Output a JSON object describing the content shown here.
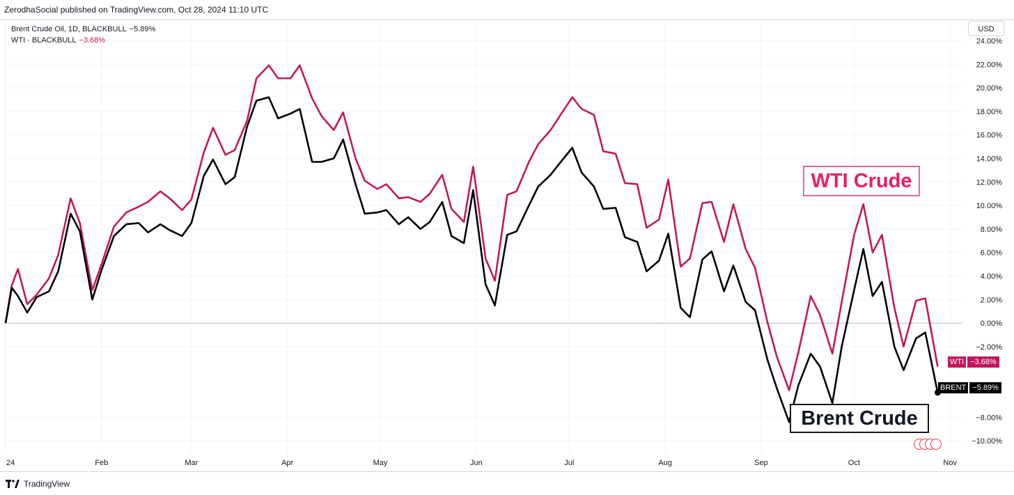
{
  "header": {
    "published_text": "ZerodhaSocial published on TradingView.com, Oct 28, 2024 11:10 UTC"
  },
  "legend": {
    "series1_label": "Brent Crude Oil, 1D, BLACKBULL",
    "series1_value": "−5.89%",
    "series2_label": "WTI · BLACKBULL",
    "series2_value": "−3.68%"
  },
  "currency_button": "USD",
  "annotations": {
    "wti": "WTI Crude",
    "brent": "Brent Crude"
  },
  "price_tags": {
    "wti": {
      "name": "WTI",
      "value": "−3.68%"
    },
    "brent": {
      "name": "BRENT",
      "value": "−5.89%"
    }
  },
  "footer": {
    "brand": "TradingView"
  },
  "colors": {
    "wti": "#c2185b",
    "brent": "#000000",
    "zero_line": "#b2b5be"
  },
  "chart_data": {
    "type": "line",
    "xlabel": "",
    "ylabel": "",
    "y_unit": "%",
    "ylim": [
      -11,
      24.5
    ],
    "x_range": [
      "2024-01-01",
      "2024-11-05"
    ],
    "grid": true,
    "x_ticks": [
      {
        "label": "24",
        "date": "2024-01-01"
      },
      {
        "label": "Feb",
        "date": "2024-02-01"
      },
      {
        "label": "Mar",
        "date": "2024-03-01"
      },
      {
        "label": "Apr",
        "date": "2024-04-01"
      },
      {
        "label": "May",
        "date": "2024-05-01"
      },
      {
        "label": "Jun",
        "date": "2024-06-01"
      },
      {
        "label": "Jul",
        "date": "2024-07-01"
      },
      {
        "label": "Aug",
        "date": "2024-08-01"
      },
      {
        "label": "Sep",
        "date": "2024-09-01"
      },
      {
        "label": "Oct",
        "date": "2024-10-01"
      },
      {
        "label": "Nov",
        "date": "2024-11-01"
      }
    ],
    "y_ticks": [
      "24.00%",
      "22.00%",
      "20.00%",
      "18.00%",
      "16.00%",
      "14.00%",
      "12.00%",
      "10.00%",
      "8.00%",
      "6.00%",
      "4.00%",
      "2.00%",
      "0.00%",
      "−2.00%",
      "−8.00%",
      "−10.00%"
    ],
    "y_tick_values": [
      24,
      22,
      20,
      18,
      16,
      14,
      12,
      10,
      8,
      6,
      4,
      2,
      0,
      -2,
      -8,
      -10
    ],
    "series": [
      {
        "key": "wti",
        "x": [
          "2024-01-01",
          "2024-01-03",
          "2024-01-05",
          "2024-01-08",
          "2024-01-11",
          "2024-01-15",
          "2024-01-18",
          "2024-01-22",
          "2024-01-25",
          "2024-01-29",
          "2024-02-01",
          "2024-02-05",
          "2024-02-09",
          "2024-02-13",
          "2024-02-16",
          "2024-02-20",
          "2024-02-23",
          "2024-02-27",
          "2024-03-01",
          "2024-03-05",
          "2024-03-08",
          "2024-03-12",
          "2024-03-15",
          "2024-03-19",
          "2024-03-22",
          "2024-03-26",
          "2024-03-29",
          "2024-04-02",
          "2024-04-05",
          "2024-04-09",
          "2024-04-12",
          "2024-04-16",
          "2024-04-19",
          "2024-04-23",
          "2024-04-26",
          "2024-04-30",
          "2024-05-03",
          "2024-05-07",
          "2024-05-10",
          "2024-05-14",
          "2024-05-17",
          "2024-05-21",
          "2024-05-24",
          "2024-05-28",
          "2024-05-31",
          "2024-06-04",
          "2024-06-07",
          "2024-06-11",
          "2024-06-14",
          "2024-06-18",
          "2024-06-21",
          "2024-06-25",
          "2024-06-28",
          "2024-07-02",
          "2024-07-05",
          "2024-07-09",
          "2024-07-12",
          "2024-07-16",
          "2024-07-19",
          "2024-07-23",
          "2024-07-26",
          "2024-07-30",
          "2024-08-02",
          "2024-08-06",
          "2024-08-09",
          "2024-08-13",
          "2024-08-16",
          "2024-08-20",
          "2024-08-23",
          "2024-08-27",
          "2024-08-30",
          "2024-09-03",
          "2024-09-06",
          "2024-09-10",
          "2024-09-13",
          "2024-09-17",
          "2024-09-20",
          "2024-09-24",
          "2024-09-27",
          "2024-10-01",
          "2024-10-04",
          "2024-10-07",
          "2024-10-10",
          "2024-10-14",
          "2024-10-17",
          "2024-10-21",
          "2024-10-24",
          "2024-10-28"
        ],
        "y": [
          0,
          3.2,
          4.6,
          1.6,
          2.4,
          3.8,
          5.8,
          10.6,
          8.5,
          2.8,
          5.0,
          8.2,
          9.4,
          9.9,
          10.3,
          11.2,
          10.6,
          9.6,
          10.5,
          14.5,
          16.6,
          14.3,
          14.7,
          17.2,
          20.8,
          21.9,
          20.8,
          20.8,
          21.9,
          19.1,
          17.6,
          16.4,
          17.9,
          14.0,
          12.1,
          11.4,
          11.8,
          10.6,
          10.7,
          10.3,
          11.0,
          12.6,
          9.7,
          8.6,
          13.3,
          5.5,
          3.6,
          10.9,
          11.2,
          13.7,
          15.2,
          16.4,
          17.6,
          19.2,
          18.2,
          17.7,
          14.6,
          14.4,
          11.9,
          11.8,
          8.1,
          8.8,
          12.2,
          4.8,
          5.5,
          10.2,
          10.3,
          6.9,
          10.1,
          6.3,
          4.7,
          0.1,
          -2.8,
          -5.7,
          -2.5,
          2.3,
          0.7,
          -2.6,
          1.8,
          7.5,
          10.1,
          6.0,
          7.5,
          1.3,
          -2.0,
          1.9,
          2.1,
          -3.7
        ]
      },
      {
        "key": "brent",
        "x": [
          "2024-01-01",
          "2024-01-03",
          "2024-01-05",
          "2024-01-08",
          "2024-01-11",
          "2024-01-15",
          "2024-01-18",
          "2024-01-22",
          "2024-01-25",
          "2024-01-29",
          "2024-02-01",
          "2024-02-05",
          "2024-02-09",
          "2024-02-13",
          "2024-02-16",
          "2024-02-20",
          "2024-02-23",
          "2024-02-27",
          "2024-03-01",
          "2024-03-05",
          "2024-03-08",
          "2024-03-12",
          "2024-03-15",
          "2024-03-19",
          "2024-03-22",
          "2024-03-26",
          "2024-03-29",
          "2024-04-02",
          "2024-04-05",
          "2024-04-09",
          "2024-04-12",
          "2024-04-16",
          "2024-04-19",
          "2024-04-23",
          "2024-04-26",
          "2024-04-30",
          "2024-05-03",
          "2024-05-07",
          "2024-05-10",
          "2024-05-14",
          "2024-05-17",
          "2024-05-21",
          "2024-05-24",
          "2024-05-28",
          "2024-05-31",
          "2024-06-04",
          "2024-06-07",
          "2024-06-11",
          "2024-06-14",
          "2024-06-18",
          "2024-06-21",
          "2024-06-25",
          "2024-06-28",
          "2024-07-02",
          "2024-07-05",
          "2024-07-09",
          "2024-07-12",
          "2024-07-16",
          "2024-07-19",
          "2024-07-23",
          "2024-07-26",
          "2024-07-30",
          "2024-08-02",
          "2024-08-06",
          "2024-08-09",
          "2024-08-13",
          "2024-08-16",
          "2024-08-20",
          "2024-08-23",
          "2024-08-27",
          "2024-08-30",
          "2024-09-03",
          "2024-09-06",
          "2024-09-10",
          "2024-09-13",
          "2024-09-17",
          "2024-09-20",
          "2024-09-24",
          "2024-09-27",
          "2024-10-01",
          "2024-10-04",
          "2024-10-07",
          "2024-10-10",
          "2024-10-14",
          "2024-10-17",
          "2024-10-21",
          "2024-10-24",
          "2024-10-28"
        ],
        "y": [
          0,
          3.0,
          2.3,
          0.9,
          2.2,
          2.7,
          4.4,
          9.3,
          7.8,
          2.0,
          4.5,
          7.4,
          8.4,
          8.5,
          7.7,
          8.4,
          7.9,
          7.4,
          8.5,
          12.5,
          13.9,
          11.8,
          12.4,
          16.7,
          18.9,
          19.2,
          17.4,
          17.8,
          18.2,
          13.7,
          13.7,
          14.0,
          15.6,
          11.8,
          9.3,
          9.4,
          9.6,
          8.4,
          9.0,
          8.0,
          8.6,
          10.3,
          7.4,
          6.8,
          11.3,
          3.3,
          1.5,
          7.5,
          7.8,
          10.0,
          11.6,
          12.6,
          13.6,
          14.9,
          12.8,
          11.6,
          9.7,
          9.8,
          7.3,
          6.9,
          4.4,
          5.3,
          7.6,
          1.3,
          0.5,
          5.4,
          6.1,
          2.7,
          4.9,
          1.8,
          1.1,
          -3.1,
          -5.5,
          -8.4,
          -5.3,
          -2.6,
          -3.7,
          -6.8,
          -2.0,
          2.8,
          6.3,
          2.3,
          3.5,
          -2.0,
          -4.0,
          -1.3,
          -0.8,
          -5.9
        ]
      }
    ]
  }
}
